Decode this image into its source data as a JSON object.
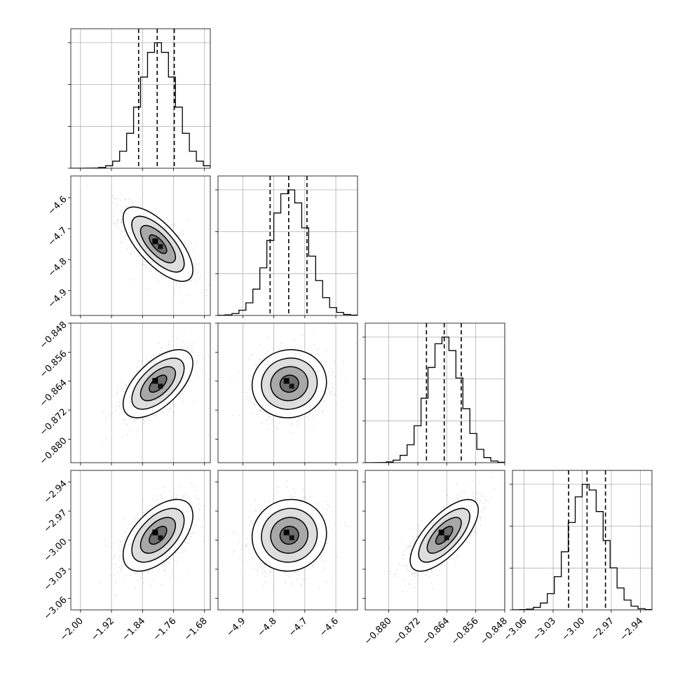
{
  "chart_data": {
    "type": "corner",
    "description_note": "",
    "parameters": [
      {
        "ticks": [
          -2.0,
          -1.92,
          -1.84,
          -1.76,
          -1.68
        ],
        "tick_labels": [
          "−2.00",
          "−1.92",
          "−1.84",
          "−1.76",
          "−1.68"
        ],
        "range": [
          -2.025,
          -1.665
        ],
        "mean": -1.8,
        "std": 0.045,
        "quantiles": [
          -1.85,
          -1.802,
          -1.758
        ]
      },
      {
        "ticks": [
          -4.9,
          -4.8,
          -4.7,
          -4.6
        ],
        "tick_labels": [
          "−4.9",
          "−4.8",
          "−4.7",
          "−4.6"
        ],
        "range": [
          -4.98,
          -4.53
        ],
        "mean": -4.75,
        "std": 0.06,
        "quantiles": [
          -4.812,
          -4.752,
          -4.693
        ]
      },
      {
        "ticks": [
          -0.88,
          -0.872,
          -0.864,
          -0.856,
          -0.848
        ],
        "tick_labels": [
          "−0.880",
          "−0.872",
          "−0.864",
          "−0.856",
          "−0.848"
        ],
        "range": [
          -0.8865,
          -0.848
        ],
        "mean": -0.8647,
        "std": 0.0047,
        "quantiles": [
          -0.8696,
          -0.8647,
          -0.86
        ]
      },
      {
        "ticks": [
          -3.06,
          -3.03,
          -3.0,
          -2.97,
          -2.94
        ],
        "tick_labels": [
          "−3.06",
          "−3.03",
          "−3.00",
          "−2.97",
          "−2.94"
        ],
        "range": [
          -3.072,
          -2.928
        ],
        "mean": -2.995,
        "std": 0.0185,
        "quantiles": [
          -3.014,
          -2.995,
          -2.976
        ]
      }
    ],
    "correlations": [
      {
        "i": 1,
        "j": 0,
        "rho": -0.7
      },
      {
        "i": 2,
        "j": 0,
        "rho": 0.6
      },
      {
        "i": 2,
        "j": 1,
        "rho": 0.05
      },
      {
        "i": 3,
        "j": 0,
        "rho": 0.55
      },
      {
        "i": 3,
        "j": 1,
        "rho": 0.05
      },
      {
        "i": 3,
        "j": 2,
        "rho": 0.7
      }
    ],
    "histogram_bins": 20,
    "contour_levels_sigma": [
      0.5,
      1.0,
      1.5,
      2.0
    ],
    "grid": true,
    "colors": {
      "line": "#000000",
      "grid": "#b0b0b0",
      "points": "#a9a9a9",
      "axes": "#000000"
    }
  }
}
